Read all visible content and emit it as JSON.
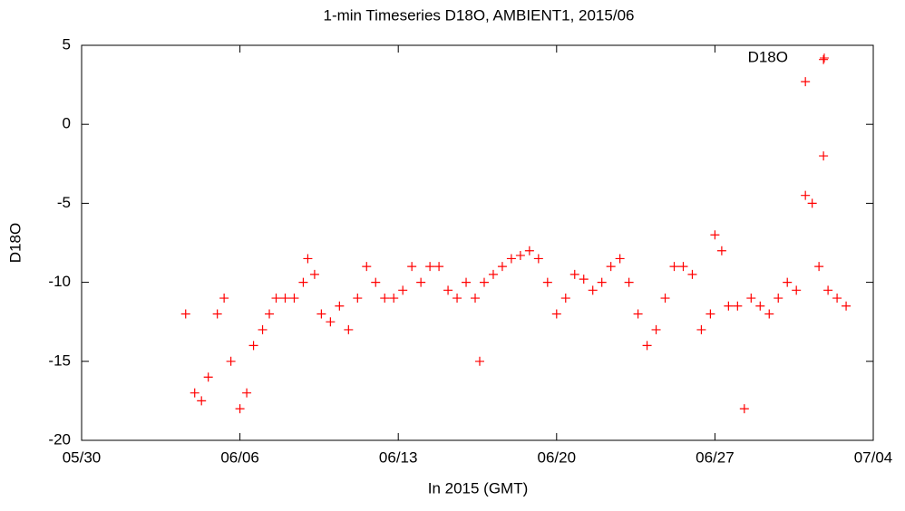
{
  "chart_data": {
    "type": "scatter",
    "title": "1-min Timeseries D18O, AMBIENT1, 2015/06",
    "x_label": "In 2015 (GMT)",
    "y_label": "D18O",
    "legend_position": "top-right",
    "xlim": [
      0,
      35
    ],
    "xticks": [
      {
        "value": 0,
        "label": "05/30"
      },
      {
        "value": 7,
        "label": "06/06"
      },
      {
        "value": 14,
        "label": "06/13"
      },
      {
        "value": 21,
        "label": "06/20"
      },
      {
        "value": 28,
        "label": "06/27"
      },
      {
        "value": 35,
        "label": "07/04"
      }
    ],
    "ylim": [
      -20,
      5
    ],
    "yticks": [
      -20,
      -15,
      -10,
      -5,
      0,
      5
    ],
    "series": [
      {
        "name": "D18O",
        "color": "#ff0000",
        "x": [
          4.6,
          5.0,
          5.3,
          5.6,
          6.0,
          6.3,
          6.6,
          7.0,
          7.3,
          7.6,
          8.0,
          8.3,
          8.6,
          9.0,
          9.4,
          9.8,
          10.0,
          10.3,
          10.6,
          11.0,
          11.4,
          11.8,
          12.2,
          12.6,
          13.0,
          13.4,
          13.8,
          14.2,
          14.6,
          15.0,
          15.4,
          15.8,
          16.2,
          16.6,
          17.0,
          17.4,
          17.6,
          17.8,
          18.2,
          18.6,
          19.0,
          19.4,
          19.8,
          20.2,
          20.6,
          21.0,
          21.4,
          21.8,
          22.2,
          22.6,
          23.0,
          23.4,
          23.8,
          24.2,
          24.6,
          25.0,
          25.4,
          25.8,
          26.2,
          26.6,
          27.0,
          27.4,
          27.8,
          28.0,
          28.3,
          28.6,
          29.0,
          29.3,
          29.6,
          30.0,
          30.4,
          30.8,
          31.2,
          31.6,
          32.0,
          32.0,
          32.3,
          32.6,
          32.8,
          32.8,
          33.0,
          33.4,
          33.8
        ],
        "values": [
          -12,
          -17,
          -17.5,
          -16,
          -12,
          -11,
          -15,
          -18,
          -17,
          -14,
          -13,
          -12,
          -11,
          -11,
          -11,
          -10,
          -8.5,
          -9.5,
          -12,
          -12.5,
          -11.5,
          -13,
          -11,
          -9,
          -10,
          -11,
          -11,
          -10.5,
          -9,
          -10,
          -9,
          -9,
          -10.5,
          -11,
          -10,
          -11,
          -15,
          -10,
          -9.5,
          -9,
          -8.5,
          -8.3,
          -8,
          -8.5,
          -10,
          -12,
          -11,
          -9.5,
          -9.8,
          -10.5,
          -10,
          -9,
          -8.5,
          -10,
          -12,
          -14,
          -13,
          -11,
          -9,
          -9,
          -9.5,
          -13,
          -12,
          -7,
          -8,
          -11.5,
          -11.5,
          -18,
          -11,
          -11.5,
          -12,
          -11,
          -10,
          -10.5,
          -4.5,
          2.7,
          -5,
          -9,
          -2,
          4.1,
          -10.5,
          -11,
          -11.5
        ]
      }
    ]
  }
}
